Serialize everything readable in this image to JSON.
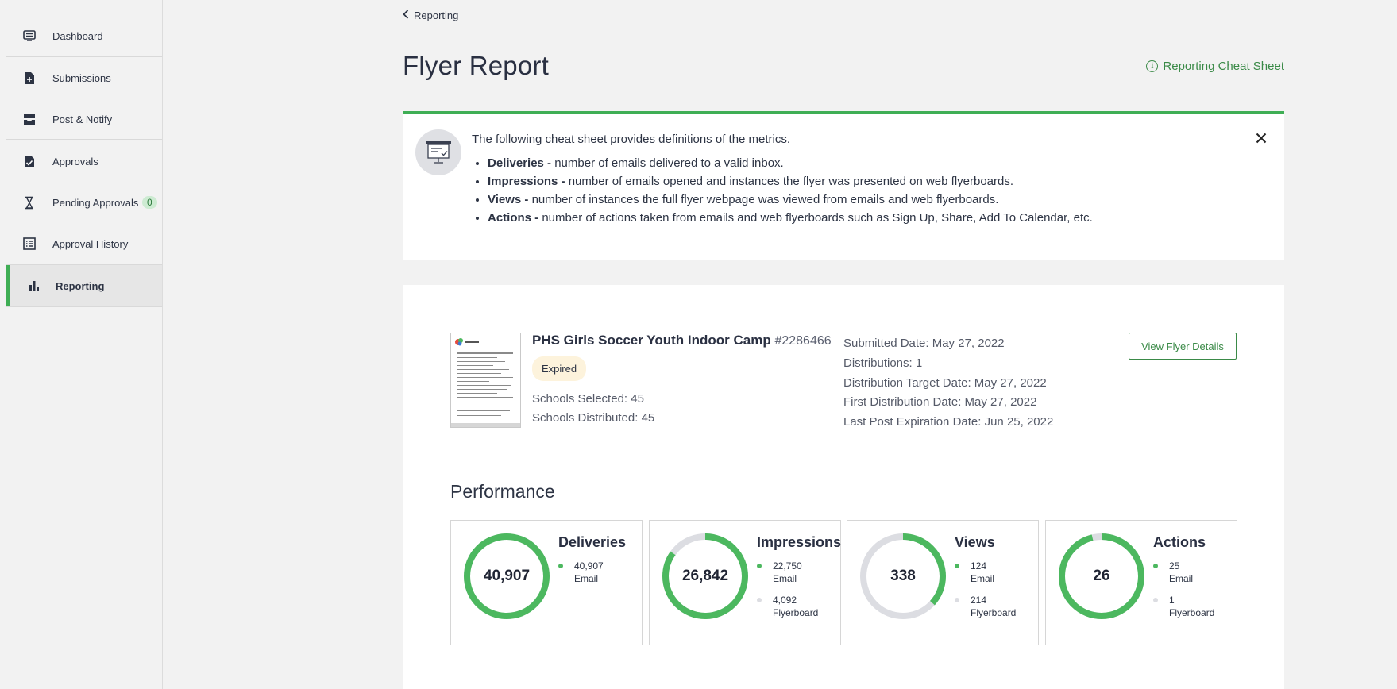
{
  "sidebar": {
    "items": [
      {
        "label": "Dashboard",
        "icon": "dashboard-icon"
      },
      {
        "label": "Submissions",
        "icon": "file-plus-icon"
      },
      {
        "label": "Post & Notify",
        "icon": "inbox-icon"
      },
      {
        "label": "Approvals",
        "icon": "file-check-icon"
      },
      {
        "label": "Pending Approvals",
        "icon": "hourglass-icon",
        "badge": "0"
      },
      {
        "label": "Approval History",
        "icon": "list-icon"
      },
      {
        "label": "Reporting",
        "icon": "bar-chart-icon",
        "active": true
      }
    ]
  },
  "header": {
    "breadcrumb": "Reporting",
    "title": "Flyer Report",
    "cheat_sheet_link": "Reporting Cheat Sheet"
  },
  "cheat_sheet": {
    "intro": "The following cheat sheet provides definitions of the metrics.",
    "items": [
      {
        "term": "Deliveries -",
        "text": " number of emails delivered to a valid inbox."
      },
      {
        "term": "Impressions -",
        "text": " number of emails opened and instances the flyer was presented on web flyerboards."
      },
      {
        "term": "Views -",
        "text": " number of instances the full flyer webpage was viewed from emails and web flyerboards."
      },
      {
        "term": "Actions -",
        "text": " number of actions taken from emails and web flyerboards such as Sign Up, Share, Add To Calendar, etc."
      }
    ]
  },
  "flyer": {
    "title": "PHS Girls Soccer Youth Indoor Camp",
    "id": "#2286466",
    "status": "Expired",
    "schools_selected": "Schools Selected: 45",
    "schools_distributed": "Schools Distributed: 45",
    "submitted_date": "Submitted Date: May 27, 2022",
    "distributions": "Distributions: 1",
    "distribution_target_date": "Distribution Target Date: May 27, 2022",
    "first_distribution_date": "First Distribution Date: May 27, 2022",
    "last_post_expiration_date": "Last Post Expiration Date: Jun 25, 2022",
    "view_button": "View Flyer Details"
  },
  "performance": {
    "title": "Performance",
    "colors": {
      "email": "#4cb85f",
      "flyerboard": "#dcdde2"
    },
    "metrics": [
      {
        "name": "Deliveries",
        "total": "40,907",
        "email": "40,907",
        "email_label": "Email",
        "email_value": 40907,
        "flyerboard_value": 0
      },
      {
        "name": "Impressions",
        "total": "26,842",
        "email": "22,750",
        "email_label": "Email",
        "flyerboard": "4,092",
        "flyerboard_label": "Flyerboard",
        "email_value": 22750,
        "flyerboard_value": 4092
      },
      {
        "name": "Views",
        "total": "338",
        "email": "124",
        "email_label": "Email",
        "flyerboard": "214",
        "flyerboard_label": "Flyerboard",
        "email_value": 124,
        "flyerboard_value": 214
      },
      {
        "name": "Actions",
        "total": "26",
        "email": "25",
        "email_label": "Email",
        "flyerboard": "1",
        "flyerboard_label": "Flyerboard",
        "email_value": 25,
        "flyerboard_value": 1
      }
    ]
  }
}
